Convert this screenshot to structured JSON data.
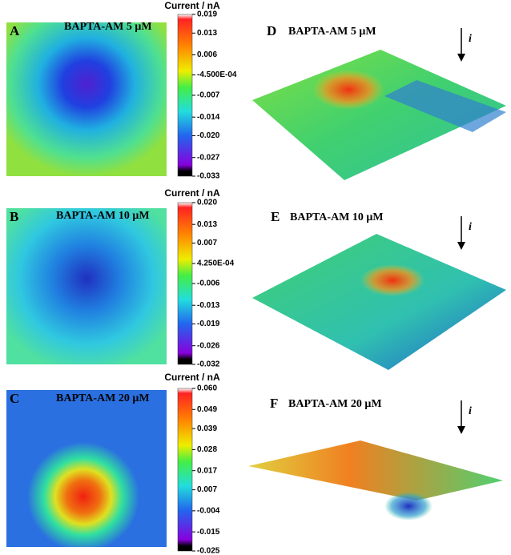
{
  "panels": [
    {
      "letter": "A",
      "title": "BAPTA-AM 5 μM",
      "surface_letter": "D",
      "surface_title": "BAPTA-AM 5 μM",
      "arrow_label": "i",
      "colorbar": {
        "label": "Current / nA",
        "ticks": [
          0.019,
          0.013,
          0.006,
          {
            "value": -0.00045,
            "label": "-4.500E-04"
          },
          -0.007,
          -0.014,
          {
            "value": -0.02,
            "label": "-0.020"
          },
          -0.027,
          -0.033
        ]
      }
    },
    {
      "letter": "B",
      "title": "BAPTA-AM 10 μM",
      "surface_letter": "E",
      "surface_title": "BAPTA-AM 10 μM",
      "arrow_label": "i",
      "colorbar": {
        "label": "Current / nA",
        "ticks": [
          {
            "value": 0.02,
            "label": "0.020"
          },
          0.013,
          0.007,
          {
            "value": 0.000425,
            "label": "4.250E-04"
          },
          -0.006,
          -0.013,
          -0.019,
          -0.026,
          -0.032
        ]
      }
    },
    {
      "letter": "C",
      "title": "BAPTA-AM 20 μM",
      "surface_letter": "F",
      "surface_title": "BAPTA-AM 20 μM",
      "arrow_label": "i",
      "colorbar": {
        "label": "Current / nA",
        "ticks": [
          {
            "value": 0.06,
            "label": "0.060"
          },
          0.049,
          0.039,
          0.028,
          0.017,
          0.007,
          -0.004,
          -0.015,
          -0.025
        ]
      }
    }
  ]
}
